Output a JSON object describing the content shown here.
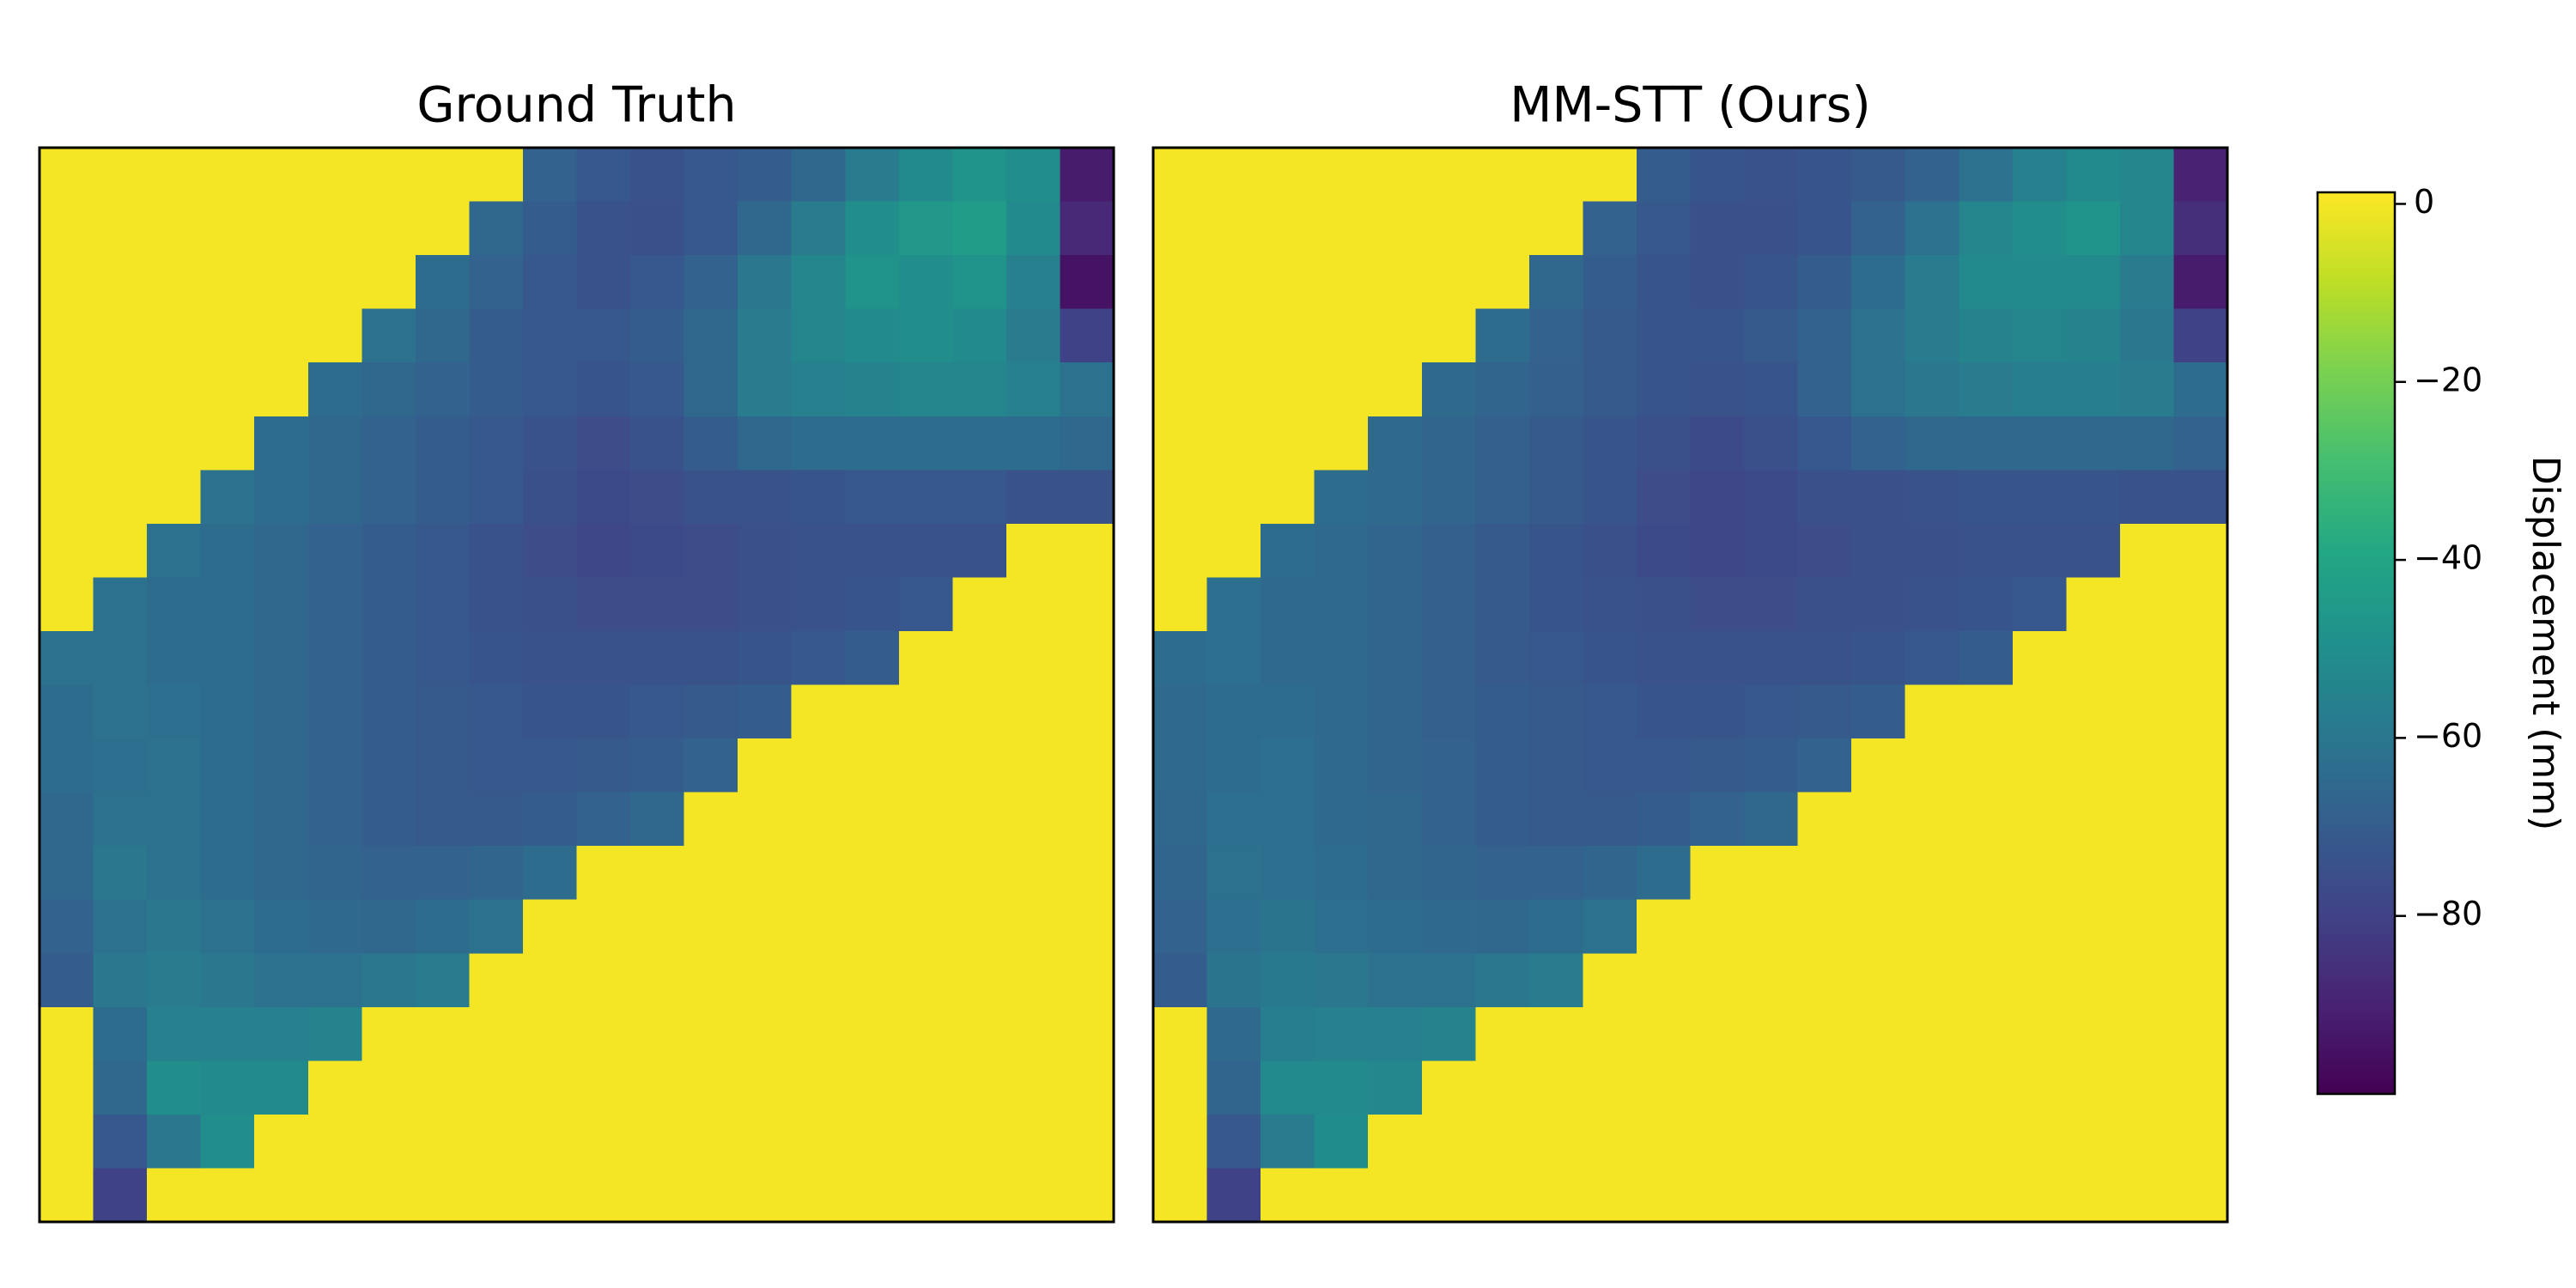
{
  "chart_data": {
    "type": "heatmap",
    "colormap": "viridis",
    "clim": [
      -100,
      1.3
    ],
    "colorbar_label": "Displacement (mm)",
    "colorbar_ticks": [
      0,
      {
        "value": -20,
        "label": "−20"
      },
      {
        "value": -40,
        "label": "−40"
      },
      {
        "value": -60,
        "label": "−60"
      },
      {
        "value": -80,
        "label": "−80"
      }
    ],
    "panels": [
      {
        "title": "Ground Truth",
        "values": [
          [
            0,
            0,
            0,
            0,
            0,
            0,
            0,
            0,
            0,
            -68,
            -72,
            -74,
            -72,
            -70,
            -66,
            -58,
            -52,
            -48,
            -50,
            -92
          ],
          [
            0,
            0,
            0,
            0,
            0,
            0,
            0,
            0,
            -66,
            -70,
            -74,
            -75,
            -72,
            -66,
            -58,
            -50,
            -46,
            -44,
            -52,
            -88
          ],
          [
            0,
            0,
            0,
            0,
            0,
            0,
            0,
            -64,
            -68,
            -72,
            -74,
            -72,
            -68,
            -60,
            -54,
            -48,
            -50,
            -48,
            -56,
            -95
          ],
          [
            0,
            0,
            0,
            0,
            0,
            0,
            -62,
            -66,
            -70,
            -72,
            -72,
            -70,
            -66,
            -58,
            -54,
            -52,
            -50,
            -52,
            -58,
            -80
          ],
          [
            0,
            0,
            0,
            0,
            0,
            -64,
            -66,
            -68,
            -70,
            -72,
            -73,
            -72,
            -66,
            -58,
            -56,
            -55,
            -54,
            -54,
            -56,
            -62
          ],
          [
            0,
            0,
            0,
            0,
            -64,
            -66,
            -68,
            -70,
            -72,
            -74,
            -76,
            -74,
            -70,
            -66,
            -64,
            -64,
            -64,
            -64,
            -64,
            -66
          ],
          [
            0,
            0,
            0,
            -62,
            -64,
            -66,
            -68,
            -70,
            -72,
            -75,
            -77,
            -76,
            -74,
            -74,
            -73,
            -72,
            -72,
            -72,
            -74,
            -74
          ],
          [
            0,
            0,
            -62,
            -64,
            -66,
            -68,
            -70,
            -72,
            -74,
            -76,
            -78,
            -77,
            -76,
            -75,
            -74,
            -74,
            -74,
            -74,
            0,
            0
          ],
          [
            0,
            -62,
            -64,
            -64,
            -66,
            -68,
            -70,
            -72,
            -74,
            -75,
            -76,
            -76,
            -76,
            -75,
            -74,
            -73,
            -72,
            0,
            0,
            0
          ],
          [
            -62,
            -62,
            -64,
            -64,
            -66,
            -68,
            -70,
            -72,
            -73,
            -74,
            -74,
            -74,
            -74,
            -73,
            -72,
            -70,
            0,
            0,
            0,
            0
          ],
          [
            -64,
            -62,
            -63,
            -64,
            -66,
            -68,
            -70,
            -71,
            -72,
            -73,
            -73,
            -72,
            -71,
            -70,
            0,
            0,
            0,
            0,
            0,
            0
          ],
          [
            -64,
            -63,
            -62,
            -64,
            -66,
            -68,
            -70,
            -71,
            -72,
            -72,
            -71,
            -70,
            -68,
            0,
            0,
            0,
            0,
            0,
            0,
            0
          ],
          [
            -66,
            -62,
            -62,
            -64,
            -66,
            -68,
            -70,
            -71,
            -71,
            -70,
            -68,
            -66,
            0,
            0,
            0,
            0,
            0,
            0,
            0,
            0
          ],
          [
            -66,
            -60,
            -62,
            -64,
            -66,
            -67,
            -68,
            -68,
            -67,
            -64,
            0,
            0,
            0,
            0,
            0,
            0,
            0,
            0,
            0,
            0
          ],
          [
            -68,
            -62,
            -60,
            -62,
            -64,
            -65,
            -66,
            -64,
            -62,
            0,
            0,
            0,
            0,
            0,
            0,
            0,
            0,
            0,
            0,
            0
          ],
          [
            -70,
            -60,
            -58,
            -60,
            -62,
            -62,
            -60,
            -58,
            0,
            0,
            0,
            0,
            0,
            0,
            0,
            0,
            0,
            0,
            0,
            0
          ],
          [
            0,
            -64,
            -56,
            -56,
            -56,
            -55,
            0,
            0,
            0,
            0,
            0,
            0,
            0,
            0,
            0,
            0,
            0,
            0,
            0,
            0
          ],
          [
            0,
            -66,
            -50,
            -52,
            -52,
            0,
            0,
            0,
            0,
            0,
            0,
            0,
            0,
            0,
            0,
            0,
            0,
            0,
            0,
            0
          ],
          [
            0,
            -72,
            -60,
            -50,
            0,
            0,
            0,
            0,
            0,
            0,
            0,
            0,
            0,
            0,
            0,
            0,
            0,
            0,
            0,
            0
          ],
          [
            0,
            -80,
            0,
            0,
            0,
            0,
            0,
            0,
            0,
            0,
            0,
            0,
            0,
            0,
            0,
            0,
            0,
            0,
            0,
            0
          ]
        ]
      },
      {
        "title": "MM-STT (Ours)",
        "values": [
          [
            0,
            0,
            0,
            0,
            0,
            0,
            0,
            0,
            0,
            -70,
            -73,
            -74,
            -73,
            -71,
            -68,
            -62,
            -56,
            -52,
            -54,
            -90
          ],
          [
            0,
            0,
            0,
            0,
            0,
            0,
            0,
            0,
            -68,
            -72,
            -75,
            -75,
            -73,
            -68,
            -62,
            -54,
            -50,
            -48,
            -54,
            -86
          ],
          [
            0,
            0,
            0,
            0,
            0,
            0,
            0,
            -66,
            -70,
            -73,
            -75,
            -73,
            -70,
            -64,
            -58,
            -52,
            -52,
            -52,
            -58,
            -92
          ],
          [
            0,
            0,
            0,
            0,
            0,
            0,
            -64,
            -68,
            -71,
            -73,
            -73,
            -71,
            -68,
            -62,
            -58,
            -55,
            -54,
            -55,
            -60,
            -80
          ],
          [
            0,
            0,
            0,
            0,
            0,
            -65,
            -67,
            -69,
            -71,
            -73,
            -74,
            -73,
            -68,
            -62,
            -60,
            -58,
            -57,
            -57,
            -58,
            -64
          ],
          [
            0,
            0,
            0,
            0,
            -65,
            -67,
            -69,
            -71,
            -73,
            -75,
            -77,
            -75,
            -72,
            -68,
            -66,
            -66,
            -66,
            -66,
            -66,
            -68
          ],
          [
            0,
            0,
            0,
            -64,
            -65,
            -67,
            -69,
            -71,
            -73,
            -76,
            -78,
            -77,
            -75,
            -75,
            -74,
            -73,
            -73,
            -73,
            -74,
            -74
          ],
          [
            0,
            0,
            -64,
            -65,
            -67,
            -69,
            -71,
            -73,
            -75,
            -77,
            -78,
            -77,
            -76,
            -75,
            -75,
            -74,
            -74,
            -74,
            0,
            0
          ],
          [
            0,
            -63,
            -65,
            -65,
            -67,
            -69,
            -71,
            -73,
            -74,
            -75,
            -76,
            -76,
            -75,
            -75,
            -74,
            -73,
            -72,
            0,
            0,
            0
          ],
          [
            -64,
            -63,
            -65,
            -65,
            -67,
            -69,
            -71,
            -72,
            -73,
            -74,
            -74,
            -74,
            -74,
            -73,
            -72,
            -70,
            0,
            0,
            0,
            0
          ],
          [
            -65,
            -64,
            -64,
            -65,
            -67,
            -69,
            -70,
            -71,
            -72,
            -73,
            -73,
            -72,
            -71,
            -70,
            0,
            0,
            0,
            0,
            0,
            0
          ],
          [
            -65,
            -64,
            -63,
            -65,
            -67,
            -68,
            -70,
            -71,
            -72,
            -72,
            -71,
            -70,
            -68,
            0,
            0,
            0,
            0,
            0,
            0,
            0
          ],
          [
            -66,
            -63,
            -63,
            -65,
            -66,
            -68,
            -70,
            -71,
            -71,
            -70,
            -68,
            -66,
            0,
            0,
            0,
            0,
            0,
            0,
            0,
            0
          ],
          [
            -67,
            -62,
            -63,
            -64,
            -66,
            -67,
            -68,
            -68,
            -67,
            -64,
            0,
            0,
            0,
            0,
            0,
            0,
            0,
            0,
            0,
            0
          ],
          [
            -68,
            -63,
            -61,
            -63,
            -64,
            -65,
            -66,
            -64,
            -62,
            0,
            0,
            0,
            0,
            0,
            0,
            0,
            0,
            0,
            0,
            0
          ],
          [
            -70,
            -61,
            -59,
            -60,
            -62,
            -62,
            -60,
            -58,
            0,
            0,
            0,
            0,
            0,
            0,
            0,
            0,
            0,
            0,
            0,
            0
          ],
          [
            0,
            -65,
            -57,
            -56,
            -56,
            -55,
            0,
            0,
            0,
            0,
            0,
            0,
            0,
            0,
            0,
            0,
            0,
            0,
            0,
            0
          ],
          [
            0,
            -67,
            -52,
            -52,
            -53,
            0,
            0,
            0,
            0,
            0,
            0,
            0,
            0,
            0,
            0,
            0,
            0,
            0,
            0,
            0
          ],
          [
            0,
            -72,
            -58,
            -51,
            0,
            0,
            0,
            0,
            0,
            0,
            0,
            0,
            0,
            0,
            0,
            0,
            0,
            0,
            0,
            0
          ],
          [
            0,
            -80,
            0,
            0,
            0,
            0,
            0,
            0,
            0,
            0,
            0,
            0,
            0,
            0,
            0,
            0,
            0,
            0,
            0,
            0
          ]
        ]
      }
    ]
  }
}
